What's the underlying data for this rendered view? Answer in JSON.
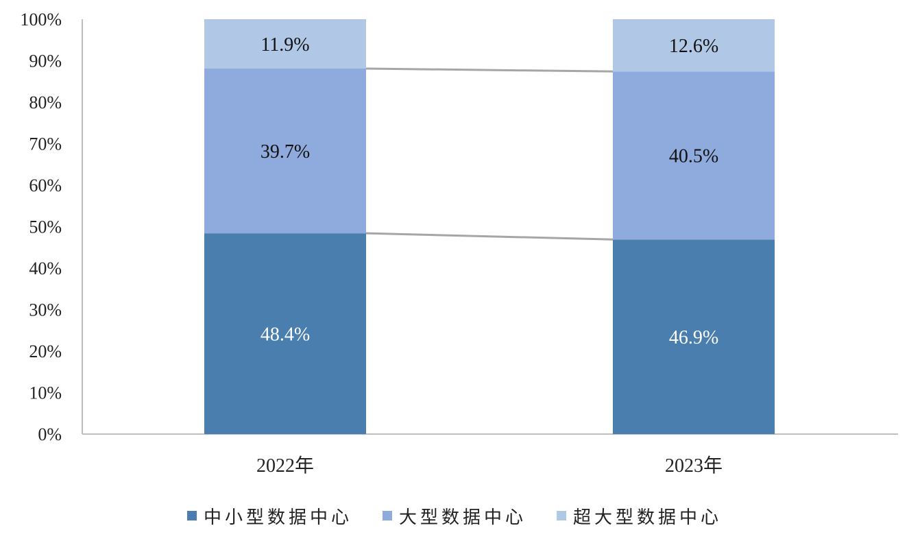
{
  "chart_data": {
    "type": "bar",
    "stacked": true,
    "percent_stacked": true,
    "categories": [
      "2022年",
      "2023年"
    ],
    "series": [
      {
        "name": "中小型数据中心",
        "values": [
          48.4,
          46.9
        ],
        "labels": [
          "48.4%",
          "46.9%"
        ],
        "color": "#4a7eae",
        "label_color": "#ffffff"
      },
      {
        "name": "大型数据中心",
        "values": [
          39.7,
          40.5
        ],
        "labels": [
          "39.7%",
          "40.5%"
        ],
        "color": "#8faadc",
        "label_color": "#111111"
      },
      {
        "name": "超大型数据中心",
        "values": [
          11.9,
          12.6
        ],
        "labels": [
          "11.9%",
          "12.6%"
        ],
        "color": "#b0c8e6",
        "label_color": "#111111"
      }
    ],
    "ylim": [
      0,
      100
    ],
    "yticks": [
      "0%",
      "10%",
      "20%",
      "30%",
      "40%",
      "50%",
      "60%",
      "70%",
      "80%",
      "90%",
      "100%"
    ],
    "series_lines": true,
    "series_line_color": "#a6a6a6",
    "axis_color": "#bfbfbf",
    "grid": false,
    "legend_position": "bottom"
  }
}
